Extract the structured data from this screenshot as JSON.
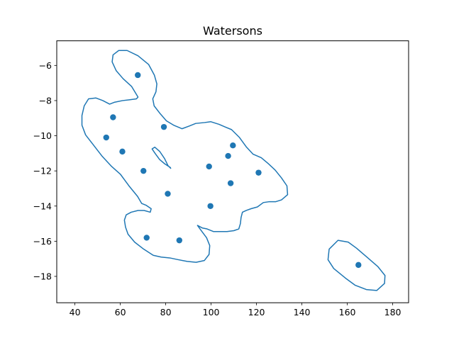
{
  "chart_data": {
    "type": "scatter",
    "title": "Watersons",
    "xlabel": "",
    "ylabel": "",
    "xlim": [
      32,
      187
    ],
    "ylim": [
      -19.5,
      -4.6
    ],
    "grid": false,
    "xticks": [
      40,
      60,
      80,
      100,
      120,
      140,
      160,
      180
    ],
    "yticks": [
      -18,
      -16,
      -14,
      -12,
      -10,
      -8,
      -6
    ],
    "xtick_labels": [
      "40",
      "60",
      "80",
      "100",
      "120",
      "140",
      "160",
      "180"
    ],
    "ytick_labels": [
      "−18",
      "−16",
      "−14",
      "−12",
      "−10",
      "−8",
      "−6"
    ],
    "colors": {
      "series": "#1f77b4",
      "axes": "#000000",
      "background": "#ffffff"
    },
    "points": [
      {
        "x": 67.7,
        "y": -6.55
      },
      {
        "x": 56.8,
        "y": -8.95
      },
      {
        "x": 53.8,
        "y": -10.1
      },
      {
        "x": 79.2,
        "y": -9.5
      },
      {
        "x": 60.9,
        "y": -10.9
      },
      {
        "x": 70.2,
        "y": -12.0
      },
      {
        "x": 80.9,
        "y": -13.3
      },
      {
        "x": 71.6,
        "y": -15.8
      },
      {
        "x": 86.0,
        "y": -15.95
      },
      {
        "x": 99.1,
        "y": -11.75
      },
      {
        "x": 107.5,
        "y": -11.15
      },
      {
        "x": 109.6,
        "y": -10.55
      },
      {
        "x": 108.6,
        "y": -12.7
      },
      {
        "x": 120.9,
        "y": -12.1
      },
      {
        "x": 99.7,
        "y": -14.0
      },
      {
        "x": 164.9,
        "y": -17.35
      }
    ],
    "contours": [
      [
        [
          44.1,
          -8.3
        ],
        [
          46.0,
          -7.9
        ],
        [
          49.2,
          -7.85
        ],
        [
          52.3,
          -8.0
        ],
        [
          55.3,
          -8.2
        ],
        [
          57.3,
          -8.1
        ],
        [
          61.0,
          -8.0
        ],
        [
          64.2,
          -7.95
        ],
        [
          67.1,
          -7.9
        ],
        [
          67.8,
          -7.8
        ],
        [
          65.0,
          -7.2
        ],
        [
          61.2,
          -6.75
        ],
        [
          58.2,
          -6.3
        ],
        [
          56.4,
          -5.8
        ],
        [
          56.8,
          -5.4
        ],
        [
          59.3,
          -5.15
        ],
        [
          63.0,
          -5.15
        ],
        [
          67.8,
          -5.45
        ],
        [
          72.5,
          -5.95
        ],
        [
          75.0,
          -6.55
        ],
        [
          76.1,
          -7.05
        ],
        [
          75.7,
          -7.5
        ],
        [
          74.3,
          -7.9
        ],
        [
          74.9,
          -8.3
        ],
        [
          77.6,
          -8.75
        ],
        [
          80.3,
          -9.15
        ],
        [
          83.5,
          -9.4
        ],
        [
          87.2,
          -9.6
        ],
        [
          90.3,
          -9.45
        ],
        [
          93.2,
          -9.3
        ],
        [
          97.1,
          -9.25
        ],
        [
          99.8,
          -9.2
        ],
        [
          103.5,
          -9.35
        ],
        [
          106.2,
          -9.5
        ],
        [
          109.0,
          -9.65
        ],
        [
          112.5,
          -10.1
        ],
        [
          115.6,
          -10.65
        ],
        [
          118.5,
          -11.05
        ],
        [
          122.1,
          -11.25
        ],
        [
          125.3,
          -11.6
        ],
        [
          128.2,
          -11.95
        ],
        [
          131.0,
          -12.4
        ],
        [
          133.4,
          -12.85
        ],
        [
          133.7,
          -13.35
        ],
        [
          131.0,
          -13.65
        ],
        [
          128.5,
          -13.75
        ],
        [
          125.7,
          -13.75
        ],
        [
          123.0,
          -13.8
        ],
        [
          120.4,
          -14.05
        ],
        [
          117.6,
          -14.15
        ],
        [
          115.5,
          -14.25
        ],
        [
          113.8,
          -14.35
        ],
        [
          113.2,
          -14.65
        ],
        [
          112.9,
          -15.0
        ],
        [
          112.2,
          -15.3
        ],
        [
          110.0,
          -15.4
        ],
        [
          107.0,
          -15.45
        ],
        [
          104.0,
          -15.45
        ],
        [
          101.0,
          -15.45
        ],
        [
          98.2,
          -15.3
        ],
        [
          96.2,
          -15.25
        ],
        [
          94.0,
          -15.1
        ],
        [
          95.4,
          -15.35
        ],
        [
          98.0,
          -15.8
        ],
        [
          99.4,
          -16.25
        ],
        [
          99.1,
          -16.75
        ],
        [
          97.0,
          -17.1
        ],
        [
          93.4,
          -17.2
        ],
        [
          89.5,
          -17.15
        ],
        [
          85.5,
          -17.05
        ],
        [
          81.8,
          -16.95
        ],
        [
          78.0,
          -16.9
        ],
        [
          74.5,
          -16.8
        ],
        [
          70.3,
          -16.45
        ],
        [
          66.3,
          -16.05
        ],
        [
          63.4,
          -15.6
        ],
        [
          62.3,
          -15.2
        ],
        [
          61.8,
          -14.8
        ],
        [
          62.6,
          -14.5
        ],
        [
          64.8,
          -14.35
        ],
        [
          67.8,
          -14.25
        ],
        [
          70.5,
          -14.25
        ],
        [
          73.2,
          -14.35
        ],
        [
          73.6,
          -14.15
        ],
        [
          71.3,
          -13.95
        ],
        [
          69.4,
          -13.85
        ],
        [
          67.6,
          -13.45
        ],
        [
          63.8,
          -12.85
        ],
        [
          60.1,
          -12.2
        ],
        [
          56.2,
          -11.75
        ],
        [
          51.9,
          -11.15
        ],
        [
          47.7,
          -10.45
        ],
        [
          44.7,
          -9.95
        ],
        [
          43.1,
          -9.4
        ],
        [
          43.1,
          -8.85
        ],
        [
          44.1,
          -8.3
        ]
      ],
      [
        [
          74.0,
          -10.75
        ],
        [
          75.2,
          -10.65
        ],
        [
          77.4,
          -10.9
        ],
        [
          79.5,
          -11.3
        ],
        [
          81.0,
          -11.7
        ],
        [
          82.2,
          -11.85
        ],
        [
          82.0,
          -11.8
        ],
        [
          79.6,
          -11.6
        ],
        [
          77.3,
          -11.35
        ],
        [
          75.3,
          -11.0
        ],
        [
          74.0,
          -10.75
        ]
      ],
      [
        [
          155.9,
          -15.95
        ],
        [
          160.4,
          -16.05
        ],
        [
          164.1,
          -16.4
        ],
        [
          168.6,
          -16.9
        ],
        [
          173.5,
          -17.45
        ],
        [
          176.6,
          -17.95
        ],
        [
          176.4,
          -18.4
        ],
        [
          173.0,
          -18.8
        ],
        [
          168.4,
          -18.75
        ],
        [
          163.4,
          -18.5
        ],
        [
          159.2,
          -18.1
        ],
        [
          154.0,
          -17.55
        ],
        [
          151.5,
          -17.05
        ],
        [
          152.0,
          -16.45
        ],
        [
          155.9,
          -15.95
        ]
      ]
    ]
  }
}
